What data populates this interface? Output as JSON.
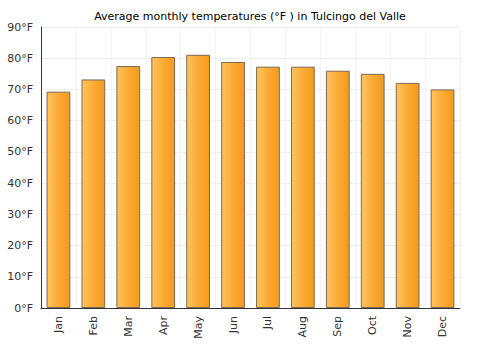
{
  "chart_data": {
    "type": "bar",
    "title": "Average monthly temperatures (°F ) in Tulcingo del Valle",
    "categories": [
      "Jan",
      "Feb",
      "Mar",
      "Apr",
      "May",
      "Jun",
      "Jul",
      "Aug",
      "Sep",
      "Oct",
      "Nov",
      "Dec"
    ],
    "values": [
      69.3,
      73.2,
      77.5,
      80.4,
      81.1,
      78.8,
      77.3,
      77.3,
      76.0,
      75.0,
      72.1,
      70.0
    ],
    "color": "#fbaa35",
    "ylim": [
      0,
      90
    ],
    "yticks": [
      {
        "value": 0,
        "label": "0°F"
      },
      {
        "value": 10,
        "label": "10°F"
      },
      {
        "value": 20,
        "label": "20°F"
      },
      {
        "value": 30,
        "label": "30°F"
      },
      {
        "value": 40,
        "label": "40°F"
      },
      {
        "value": 50,
        "label": "50°F"
      },
      {
        "value": 60,
        "label": "60°F"
      },
      {
        "value": 70,
        "label": "70°F"
      },
      {
        "value": 80,
        "label": "80°F"
      },
      {
        "value": 90,
        "label": "90°F"
      }
    ],
    "grid": true
  }
}
